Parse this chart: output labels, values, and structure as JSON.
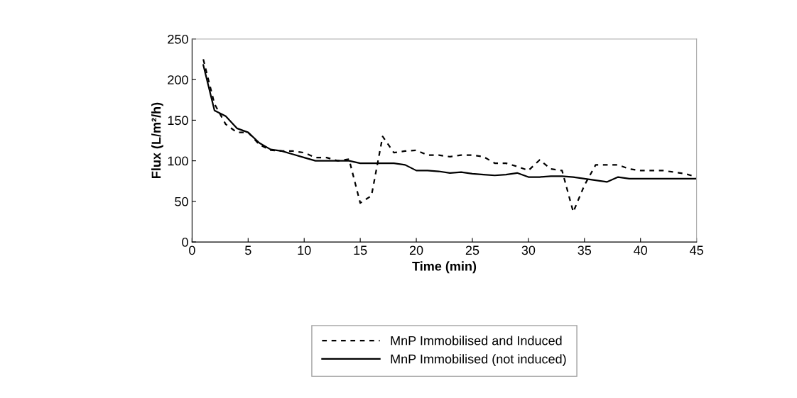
{
  "chart_data": {
    "type": "line",
    "xlabel": "Time (min)",
    "ylabel": "Flux (L/m²/h)",
    "x": [
      1,
      2,
      3,
      4,
      5,
      6,
      7,
      8,
      9,
      10,
      11,
      12,
      13,
      14,
      15,
      16,
      17,
      18,
      19,
      20,
      21,
      22,
      23,
      24,
      25,
      26,
      27,
      28,
      29,
      30,
      31,
      32,
      33,
      34,
      35,
      36,
      37,
      38,
      39,
      40,
      41,
      42,
      43,
      44,
      45
    ],
    "series": [
      {
        "name": "MnP Immobilised and Induced",
        "color": "#000000",
        "line_style": "dotted",
        "values": [
          225,
          170,
          145,
          135,
          135,
          120,
          113,
          112,
          112,
          110,
          104,
          104,
          100,
          102,
          48,
          57,
          130,
          110,
          112,
          113,
          107,
          107,
          105,
          107,
          107,
          105,
          97,
          97,
          93,
          88,
          101,
          90,
          88,
          37,
          70,
          95,
          95,
          95,
          90,
          88,
          88,
          88,
          86,
          84,
          80
        ]
      },
      {
        "name": "MnP Immobilised (not induced)",
        "color": "#000000",
        "line_style": "solid",
        "values": [
          218,
          162,
          155,
          140,
          135,
          122,
          114,
          112,
          108,
          104,
          100,
          100,
          100,
          100,
          97,
          97,
          97,
          97,
          95,
          88,
          88,
          87,
          85,
          86,
          84,
          83,
          82,
          83,
          85,
          80,
          80,
          81,
          81,
          80,
          78,
          76,
          74,
          80,
          78,
          78,
          78,
          78,
          78,
          78,
          78
        ]
      }
    ],
    "xlim": [
      0,
      45
    ],
    "xticks": [
      0,
      5,
      10,
      15,
      20,
      25,
      30,
      35,
      40,
      45
    ],
    "ylim": [
      0,
      250
    ],
    "yticks": [
      0,
      50,
      100,
      150,
      200,
      250
    ],
    "grid": false,
    "legend": "bottom",
    "marker": "none"
  }
}
